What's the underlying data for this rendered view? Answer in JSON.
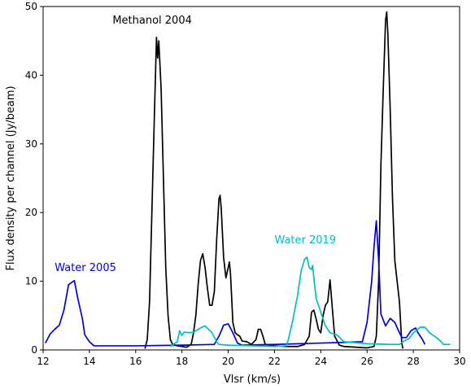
{
  "chart_data": {
    "type": "line",
    "xlabel": "Vlsr (km/s)",
    "ylabel": "Flux density per channel (Jy/beam)",
    "xlim": [
      12,
      30
    ],
    "ylim": [
      0,
      50
    ],
    "xticks": [
      12,
      14,
      16,
      18,
      20,
      22,
      24,
      26,
      28,
      30
    ],
    "yticks": [
      0,
      10,
      20,
      30,
      40,
      50
    ],
    "grid": false,
    "legend": "none",
    "annotations": [
      {
        "text": "Methanol 2004",
        "x": 15.0,
        "y": 47.5,
        "color": "#000000"
      },
      {
        "text": "Water 2019",
        "x": 22.0,
        "y": 15.5,
        "color": "#00bfbf"
      },
      {
        "text": "Water 2005",
        "x": 12.5,
        "y": 11.5,
        "color": "#0000dd"
      }
    ],
    "series": [
      {
        "name": "Methanol 2004",
        "color": "#000000",
        "points": [
          [
            16.4,
            0.2
          ],
          [
            16.5,
            1.5
          ],
          [
            16.6,
            7
          ],
          [
            16.7,
            20
          ],
          [
            16.8,
            33
          ],
          [
            16.9,
            45.5
          ],
          [
            16.95,
            42.5
          ],
          [
            17.0,
            45
          ],
          [
            17.1,
            38
          ],
          [
            17.2,
            25
          ],
          [
            17.3,
            12
          ],
          [
            17.4,
            5
          ],
          [
            17.5,
            1.5
          ],
          [
            17.6,
            0.8
          ],
          [
            17.8,
            0.6
          ],
          [
            18.2,
            0.4
          ],
          [
            18.4,
            0.8
          ],
          [
            18.5,
            2.5
          ],
          [
            18.6,
            5
          ],
          [
            18.7,
            9.5
          ],
          [
            18.8,
            13
          ],
          [
            18.9,
            14
          ],
          [
            19.0,
            12
          ],
          [
            19.1,
            9
          ],
          [
            19.2,
            6.5
          ],
          [
            19.3,
            6.5
          ],
          [
            19.4,
            8.5
          ],
          [
            19.5,
            16
          ],
          [
            19.6,
            22
          ],
          [
            19.65,
            22.5
          ],
          [
            19.7,
            20.5
          ],
          [
            19.8,
            13.5
          ],
          [
            19.9,
            10.5
          ],
          [
            20.0,
            12
          ],
          [
            20.05,
            12.8
          ],
          [
            20.1,
            11
          ],
          [
            20.2,
            4
          ],
          [
            20.3,
            2.5
          ],
          [
            20.4,
            2.2
          ],
          [
            20.5,
            2
          ],
          [
            20.6,
            1.3
          ],
          [
            20.8,
            1.2
          ],
          [
            21.0,
            0.8
          ],
          [
            21.2,
            1.5
          ],
          [
            21.3,
            3
          ],
          [
            21.4,
            3
          ],
          [
            21.5,
            2
          ],
          [
            21.6,
            0.8
          ],
          [
            22.0,
            0.6
          ],
          [
            22.5,
            0.5
          ],
          [
            23.0,
            0.5
          ],
          [
            23.3,
            0.8
          ],
          [
            23.5,
            2
          ],
          [
            23.6,
            5.5
          ],
          [
            23.7,
            5.8
          ],
          [
            23.8,
            4.5
          ],
          [
            23.9,
            3
          ],
          [
            24.0,
            2.5
          ],
          [
            24.1,
            5
          ],
          [
            24.2,
            6.5
          ],
          [
            24.3,
            7
          ],
          [
            24.4,
            10.2
          ],
          [
            24.5,
            6
          ],
          [
            24.6,
            2
          ],
          [
            24.8,
            0.7
          ],
          [
            25.0,
            0.5
          ],
          [
            26.0,
            0.3
          ],
          [
            26.3,
            0.5
          ],
          [
            26.4,
            2
          ],
          [
            26.5,
            10
          ],
          [
            26.6,
            27
          ],
          [
            26.7,
            38
          ],
          [
            26.8,
            48
          ],
          [
            26.85,
            49.2
          ],
          [
            26.9,
            46
          ],
          [
            27.0,
            35
          ],
          [
            27.1,
            22
          ],
          [
            27.2,
            13
          ],
          [
            27.3,
            10
          ],
          [
            27.4,
            7
          ],
          [
            27.5,
            1
          ],
          [
            27.55,
            0.2
          ]
        ]
      },
      {
        "name": "Water 2005",
        "color": "#0000dd",
        "points": [
          [
            12.1,
            1
          ],
          [
            12.3,
            2.3
          ],
          [
            12.5,
            3
          ],
          [
            12.7,
            3.6
          ],
          [
            12.9,
            5.8
          ],
          [
            13.1,
            9.5
          ],
          [
            13.35,
            10.1
          ],
          [
            13.5,
            7.5
          ],
          [
            13.7,
            4.5
          ],
          [
            13.8,
            2.2
          ],
          [
            14.0,
            1.2
          ],
          [
            14.2,
            0.6
          ],
          [
            16.0,
            0.6
          ],
          [
            18.0,
            0.7
          ],
          [
            19.4,
            0.8
          ],
          [
            19.6,
            2
          ],
          [
            19.8,
            3.6
          ],
          [
            20.0,
            3.8
          ],
          [
            20.2,
            2.5
          ],
          [
            20.4,
            1
          ],
          [
            20.6,
            0.7
          ],
          [
            22.0,
            0.8
          ],
          [
            24.0,
            1
          ],
          [
            25.0,
            1.1
          ],
          [
            25.8,
            1.2
          ],
          [
            26.0,
            4
          ],
          [
            26.2,
            10
          ],
          [
            26.3,
            15
          ],
          [
            26.4,
            18.8
          ],
          [
            26.5,
            13
          ],
          [
            26.6,
            5.2
          ],
          [
            26.8,
            3.5
          ],
          [
            27.0,
            4.6
          ],
          [
            27.2,
            4
          ],
          [
            27.4,
            2.5
          ],
          [
            27.5,
            1.8
          ],
          [
            27.7,
            1.8
          ],
          [
            27.9,
            2.8
          ],
          [
            28.1,
            3.2
          ],
          [
            28.2,
            2.5
          ],
          [
            28.4,
            1.5
          ],
          [
            28.5,
            0.8
          ]
        ]
      },
      {
        "name": "Water 2019",
        "color": "#00bfbf",
        "points": [
          [
            17.5,
            0.5
          ],
          [
            17.8,
            1.2
          ],
          [
            17.9,
            2.8
          ],
          [
            18.0,
            2.1
          ],
          [
            18.1,
            2.6
          ],
          [
            18.3,
            2.5
          ],
          [
            18.5,
            2.6
          ],
          [
            18.8,
            3.2
          ],
          [
            19.0,
            3.5
          ],
          [
            19.3,
            2.5
          ],
          [
            19.5,
            1.2
          ],
          [
            19.6,
            0.8
          ],
          [
            20.0,
            0.7
          ],
          [
            21.0,
            0.6
          ],
          [
            22.0,
            0.5
          ],
          [
            22.5,
            0.6
          ],
          [
            22.6,
            1.5
          ],
          [
            22.8,
            4.5
          ],
          [
            23.0,
            8
          ],
          [
            23.15,
            11.5
          ],
          [
            23.3,
            13.2
          ],
          [
            23.4,
            13.5
          ],
          [
            23.5,
            12
          ],
          [
            23.6,
            11.7
          ],
          [
            23.65,
            12.3
          ],
          [
            23.7,
            10.5
          ],
          [
            23.8,
            7.5
          ],
          [
            24.0,
            5.5
          ],
          [
            24.2,
            3.5
          ],
          [
            24.4,
            2.5
          ],
          [
            24.7,
            2.2
          ],
          [
            24.9,
            1.5
          ],
          [
            25.0,
            1.2
          ],
          [
            26.0,
            0.9
          ],
          [
            27.0,
            0.8
          ],
          [
            27.4,
            0.8
          ],
          [
            27.6,
            1.3
          ],
          [
            27.8,
            1.6
          ],
          [
            28.0,
            2.5
          ],
          [
            28.3,
            3.3
          ],
          [
            28.5,
            3.3
          ],
          [
            28.7,
            2.5
          ],
          [
            29.0,
            1.8
          ],
          [
            29.2,
            1.2
          ],
          [
            29.3,
            0.8
          ],
          [
            29.6,
            0.8
          ]
        ]
      }
    ]
  }
}
